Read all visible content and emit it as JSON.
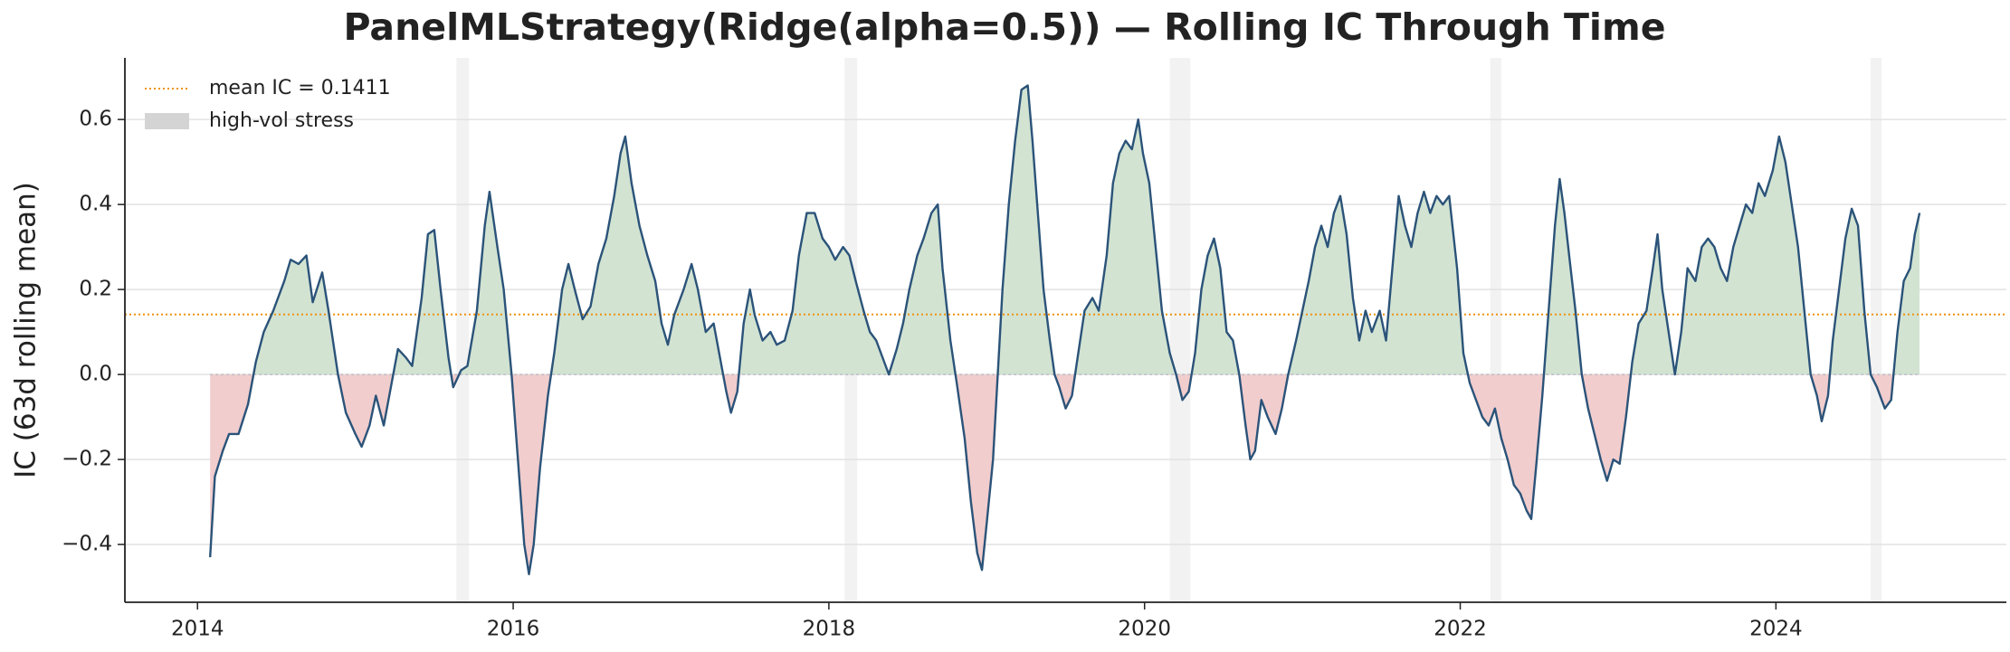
{
  "chart_data": {
    "type": "line",
    "title": "PanelMLStrategy(Ridge(alpha=0.5)) — Rolling IC Through Time",
    "y_label": "IC (63d rolling mean)",
    "xlim": [
      2013.54,
      2025.46
    ],
    "xticks": [
      2014,
      2016,
      2018,
      2020,
      2022,
      2024
    ],
    "ylim": [
      -0.536,
      0.745
    ],
    "yticks": [
      {
        "value": -0.4,
        "label": "−0.4"
      },
      {
        "value": -0.2,
        "label": "−0.2"
      },
      {
        "value": 0,
        "label": "0.0"
      },
      0.2,
      0.4,
      0.6
    ],
    "grid": true,
    "legend": "upper left",
    "color": "#2b5379",
    "positive_fill": "#d2e3d2",
    "negative_fill": "#f1cdcd",
    "mean_line": {
      "value": 0.1411,
      "label": "mean IC = 0.1411",
      "color": "#f0920a"
    },
    "stress": {
      "label": "high-vol stress",
      "color": "#f2f2f2",
      "legend_color": "#d4d4d4",
      "periods": [
        [
          2015.64,
          2015.72
        ],
        [
          2018.1,
          2018.18
        ],
        [
          2020.16,
          2020.29
        ],
        [
          2022.19,
          2022.26
        ],
        [
          2024.6,
          2024.67
        ]
      ]
    },
    "x": [
      2014.08,
      2014.11,
      2014.16,
      2014.2,
      2014.26,
      2014.32,
      2014.37,
      2014.42,
      2014.48,
      2014.55,
      2014.59,
      2014.64,
      2014.69,
      2014.73,
      2014.79,
      2014.83,
      2014.89,
      2014.94,
      2015.0,
      2015.04,
      2015.09,
      2015.13,
      2015.18,
      2015.22,
      2015.27,
      2015.32,
      2015.36,
      2015.42,
      2015.46,
      2015.5,
      2015.54,
      2015.59,
      2015.62,
      2015.67,
      2015.71,
      2015.77,
      2015.82,
      2015.85,
      2015.9,
      2015.94,
      2015.99,
      2016.03,
      2016.07,
      2016.1,
      2016.13,
      2016.17,
      2016.22,
      2016.26,
      2016.31,
      2016.35,
      2016.39,
      2016.44,
      2016.49,
      2016.54,
      2016.59,
      2016.64,
      2016.68,
      2016.71,
      2016.75,
      2016.8,
      2016.85,
      2016.9,
      2016.94,
      2016.98,
      2017.02,
      2017.08,
      2017.13,
      2017.17,
      2017.22,
      2017.27,
      2017.31,
      2017.35,
      2017.38,
      2017.42,
      2017.46,
      2017.5,
      2017.53,
      2017.58,
      2017.63,
      2017.67,
      2017.72,
      2017.77,
      2017.81,
      2017.86,
      2017.91,
      2017.96,
      2018.0,
      2018.04,
      2018.09,
      2018.13,
      2018.17,
      2018.22,
      2018.26,
      2018.3,
      2018.35,
      2018.38,
      2018.43,
      2018.47,
      2018.51,
      2018.56,
      2018.6,
      2018.65,
      2018.69,
      2018.72,
      2018.77,
      2018.81,
      2018.86,
      2018.9,
      2018.94,
      2018.97,
      2019.0,
      2019.04,
      2019.07,
      2019.1,
      2019.14,
      2019.18,
      2019.22,
      2019.26,
      2019.29,
      2019.33,
      2019.36,
      2019.4,
      2019.43,
      2019.46,
      2019.5,
      2019.54,
      2019.58,
      2019.62,
      2019.67,
      2019.71,
      2019.76,
      2019.8,
      2019.84,
      2019.88,
      2019.92,
      2019.96,
      2019.99,
      2020.03,
      2020.07,
      2020.11,
      2020.16,
      2020.2,
      2020.24,
      2020.28,
      2020.32,
      2020.36,
      2020.4,
      2020.44,
      2020.48,
      2020.52,
      2020.56,
      2020.6,
      2020.64,
      2020.67,
      2020.7,
      2020.74,
      2020.78,
      2020.83,
      2020.87,
      2020.91,
      2020.96,
      2021.0,
      2021.04,
      2021.08,
      2021.12,
      2021.16,
      2021.2,
      2021.24,
      2021.28,
      2021.32,
      2021.36,
      2021.4,
      2021.44,
      2021.49,
      2021.53,
      2021.57,
      2021.61,
      2021.65,
      2021.69,
      2021.73,
      2021.77,
      2021.81,
      2021.85,
      2021.89,
      2021.93,
      2021.98,
      2022.02,
      2022.06,
      2022.1,
      2022.14,
      2022.18,
      2022.22,
      2022.26,
      2022.3,
      2022.34,
      2022.38,
      2022.42,
      2022.45,
      2022.48,
      2022.52,
      2022.56,
      2022.6,
      2022.63,
      2022.66,
      2022.69,
      2022.73,
      2022.77,
      2022.81,
      2022.85,
      2022.89,
      2022.93,
      2022.97,
      2023.01,
      2023.05,
      2023.09,
      2023.13,
      2023.18,
      2023.22,
      2023.25,
      2023.28,
      2023.32,
      2023.36,
      2023.4,
      2023.44,
      2023.49,
      2023.53,
      2023.57,
      2023.61,
      2023.65,
      2023.69,
      2023.73,
      2023.77,
      2023.81,
      2023.85,
      2023.89,
      2023.93,
      2023.98,
      2024.02,
      2024.06,
      2024.1,
      2024.14,
      2024.18,
      2024.22,
      2024.26,
      2024.29,
      2024.33,
      2024.36,
      2024.4,
      2024.44,
      2024.48,
      2024.52,
      2024.56,
      2024.6,
      2024.64,
      2024.69,
      2024.73,
      2024.77,
      2024.81,
      2024.85,
      2024.88,
      2024.91
    ],
    "values": [
      -0.43,
      -0.24,
      -0.18,
      -0.14,
      -0.14,
      -0.07,
      0.03,
      0.1,
      0.15,
      0.22,
      0.27,
      0.26,
      0.28,
      0.17,
      0.24,
      0.15,
      0.0,
      -0.09,
      -0.14,
      -0.17,
      -0.12,
      -0.05,
      -0.12,
      -0.04,
      0.06,
      0.04,
      0.02,
      0.18,
      0.33,
      0.34,
      0.2,
      0.04,
      -0.03,
      0.01,
      0.02,
      0.15,
      0.35,
      0.43,
      0.3,
      0.2,
      0.0,
      -0.2,
      -0.4,
      -0.47,
      -0.4,
      -0.22,
      -0.05,
      0.05,
      0.2,
      0.26,
      0.2,
      0.13,
      0.16,
      0.26,
      0.32,
      0.42,
      0.52,
      0.56,
      0.45,
      0.35,
      0.28,
      0.22,
      0.12,
      0.07,
      0.14,
      0.2,
      0.26,
      0.2,
      0.1,
      0.12,
      0.04,
      -0.04,
      -0.09,
      -0.04,
      0.12,
      0.2,
      0.14,
      0.08,
      0.1,
      0.07,
      0.08,
      0.15,
      0.28,
      0.38,
      0.38,
      0.32,
      0.3,
      0.27,
      0.3,
      0.28,
      0.22,
      0.15,
      0.1,
      0.08,
      0.03,
      0.0,
      0.06,
      0.12,
      0.2,
      0.28,
      0.32,
      0.38,
      0.4,
      0.25,
      0.08,
      -0.02,
      -0.15,
      -0.3,
      -0.42,
      -0.46,
      -0.35,
      -0.2,
      0.0,
      0.2,
      0.4,
      0.55,
      0.67,
      0.68,
      0.55,
      0.35,
      0.2,
      0.08,
      0.0,
      -0.03,
      -0.08,
      -0.05,
      0.05,
      0.15,
      0.18,
      0.15,
      0.28,
      0.45,
      0.52,
      0.55,
      0.53,
      0.6,
      0.52,
      0.45,
      0.3,
      0.15,
      0.05,
      0.0,
      -0.06,
      -0.04,
      0.05,
      0.2,
      0.28,
      0.32,
      0.25,
      0.1,
      0.08,
      0.0,
      -0.12,
      -0.2,
      -0.18,
      -0.06,
      -0.1,
      -0.14,
      -0.08,
      0.0,
      0.08,
      0.15,
      0.22,
      0.3,
      0.35,
      0.3,
      0.38,
      0.42,
      0.33,
      0.18,
      0.08,
      0.15,
      0.1,
      0.15,
      0.08,
      0.25,
      0.42,
      0.35,
      0.3,
      0.38,
      0.43,
      0.38,
      0.42,
      0.4,
      0.42,
      0.25,
      0.05,
      -0.02,
      -0.06,
      -0.1,
      -0.12,
      -0.08,
      -0.15,
      -0.2,
      -0.26,
      -0.28,
      -0.32,
      -0.34,
      -0.22,
      -0.05,
      0.15,
      0.35,
      0.46,
      0.38,
      0.28,
      0.15,
      0.0,
      -0.08,
      -0.14,
      -0.2,
      -0.25,
      -0.2,
      -0.21,
      -0.1,
      0.03,
      0.12,
      0.15,
      0.25,
      0.33,
      0.2,
      0.1,
      0.0,
      0.1,
      0.25,
      0.22,
      0.3,
      0.32,
      0.3,
      0.25,
      0.22,
      0.3,
      0.35,
      0.4,
      0.38,
      0.45,
      0.42,
      0.48,
      0.56,
      0.5,
      0.4,
      0.3,
      0.15,
      0.0,
      -0.05,
      -0.11,
      -0.05,
      0.08,
      0.2,
      0.32,
      0.39,
      0.35,
      0.15,
      0.0,
      -0.03,
      -0.08,
      -0.06,
      0.1,
      0.22,
      0.25,
      0.33,
      0.38
    ]
  }
}
